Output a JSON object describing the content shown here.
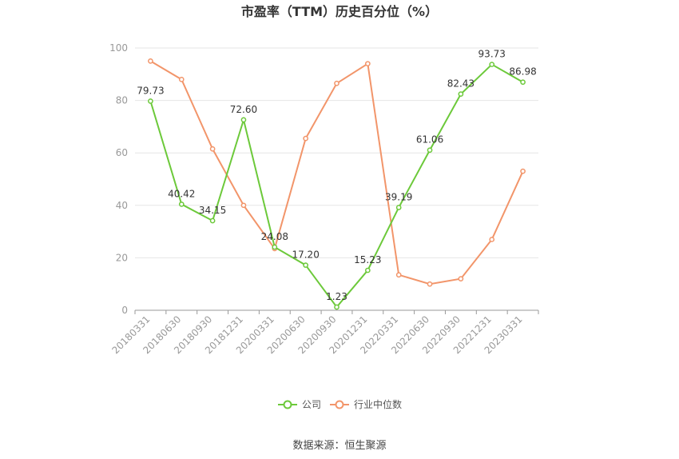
{
  "chart_data": {
    "type": "line",
    "title": "市盈率（TTM）历史百分位（%）",
    "categories": [
      "20180331",
      "20180630",
      "20180930",
      "20181231",
      "20200331",
      "20200630",
      "20200930",
      "20201231",
      "20220331",
      "20220630",
      "20220930",
      "20221231",
      "20230331"
    ],
    "ylim": [
      0,
      100
    ],
    "yticks": [
      0,
      20,
      40,
      60,
      80,
      100
    ],
    "grid": true,
    "legend_position": "bottom-center",
    "series": [
      {
        "name": "公司",
        "color": "#6cc93a",
        "values": [
          79.73,
          40.42,
          34.15,
          72.6,
          24.08,
          17.2,
          1.23,
          15.23,
          39.19,
          61.06,
          82.43,
          93.73,
          86.98
        ],
        "labels": [
          "79.73",
          "40.42",
          "34.15",
          "72.60",
          "24.08",
          "17.20",
          "1.23",
          "15.23",
          "39.19",
          "61.06",
          "82.43",
          "93.73",
          "86.98"
        ]
      },
      {
        "name": "行业中位数",
        "color": "#f2956a",
        "values": [
          95.0,
          88.0,
          61.5,
          40.0,
          23.5,
          65.5,
          86.5,
          94.0,
          13.5,
          10.0,
          12.0,
          27.0,
          53.0
        ]
      }
    ]
  },
  "source_text": "数据来源：恒生聚源"
}
